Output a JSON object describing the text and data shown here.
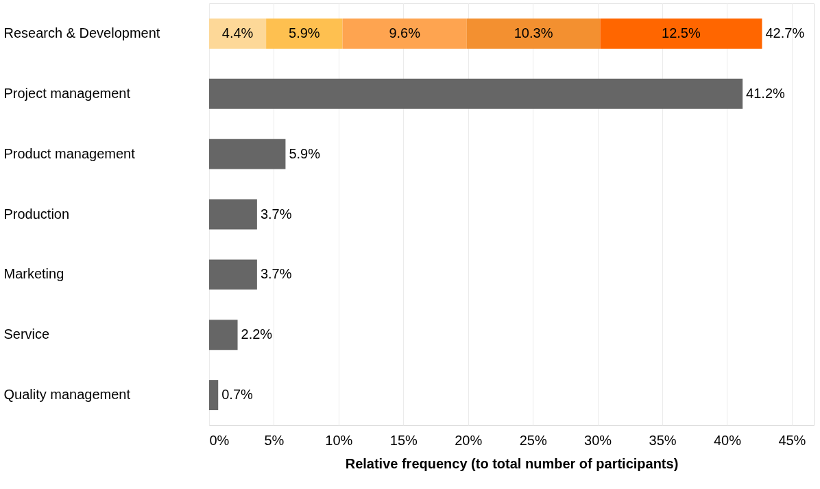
{
  "chart_data": {
    "type": "bar",
    "orientation": "horizontal",
    "stacked": true,
    "xlabel": "Relative frequency (to total number of participants)",
    "categories": [
      "Research & Development",
      "Project management",
      "Product management",
      "Production",
      "Marketing",
      "Service",
      "Quality management"
    ],
    "series": [
      {
        "color": "#fdd898",
        "values": [
          4.4,
          null,
          null,
          null,
          null,
          null,
          null
        ],
        "value_labels": [
          "4.4%",
          null,
          null,
          null,
          null,
          null,
          null
        ]
      },
      {
        "color": "#fec050",
        "values": [
          5.9,
          null,
          null,
          null,
          null,
          null,
          null
        ],
        "value_labels": [
          "5.9%",
          null,
          null,
          null,
          null,
          null,
          null
        ]
      },
      {
        "color": "#fea450",
        "values": [
          9.6,
          null,
          null,
          null,
          null,
          null,
          null
        ],
        "value_labels": [
          "9.6%",
          null,
          null,
          null,
          null,
          null,
          null
        ]
      },
      {
        "color": "#f39030",
        "values": [
          10.3,
          null,
          null,
          null,
          null,
          null,
          null
        ],
        "value_labels": [
          "10.3%",
          null,
          null,
          null,
          null,
          null,
          null
        ]
      },
      {
        "color": "#ff6600",
        "values": [
          12.5,
          null,
          null,
          null,
          null,
          null,
          null
        ],
        "value_labels": [
          "12.5%",
          null,
          null,
          null,
          null,
          null,
          null
        ]
      },
      {
        "color": "#666666",
        "values": [
          null,
          41.2,
          5.9,
          3.7,
          3.7,
          2.2,
          0.7
        ],
        "value_labels": [
          null,
          "41.2%",
          "5.9%",
          "3.7%",
          "3.7%",
          "2.2%",
          "0.7%"
        ]
      }
    ],
    "totals": [
      "42.7%",
      null,
      null,
      null,
      null,
      null,
      null
    ],
    "xlim": [
      0,
      46.7
    ],
    "xticks": [
      {
        "value": 0,
        "label": "0%"
      },
      {
        "value": 5,
        "label": "5%"
      },
      {
        "value": 10,
        "label": "10%"
      },
      {
        "value": 15,
        "label": "15%"
      },
      {
        "value": 20,
        "label": "20%"
      },
      {
        "value": 25,
        "label": "25%"
      },
      {
        "value": 30,
        "label": "30%"
      },
      {
        "value": 35,
        "label": "35%"
      },
      {
        "value": 40,
        "label": "40%"
      },
      {
        "value": 45,
        "label": "45%"
      }
    ],
    "grid": "x",
    "legend": false
  }
}
